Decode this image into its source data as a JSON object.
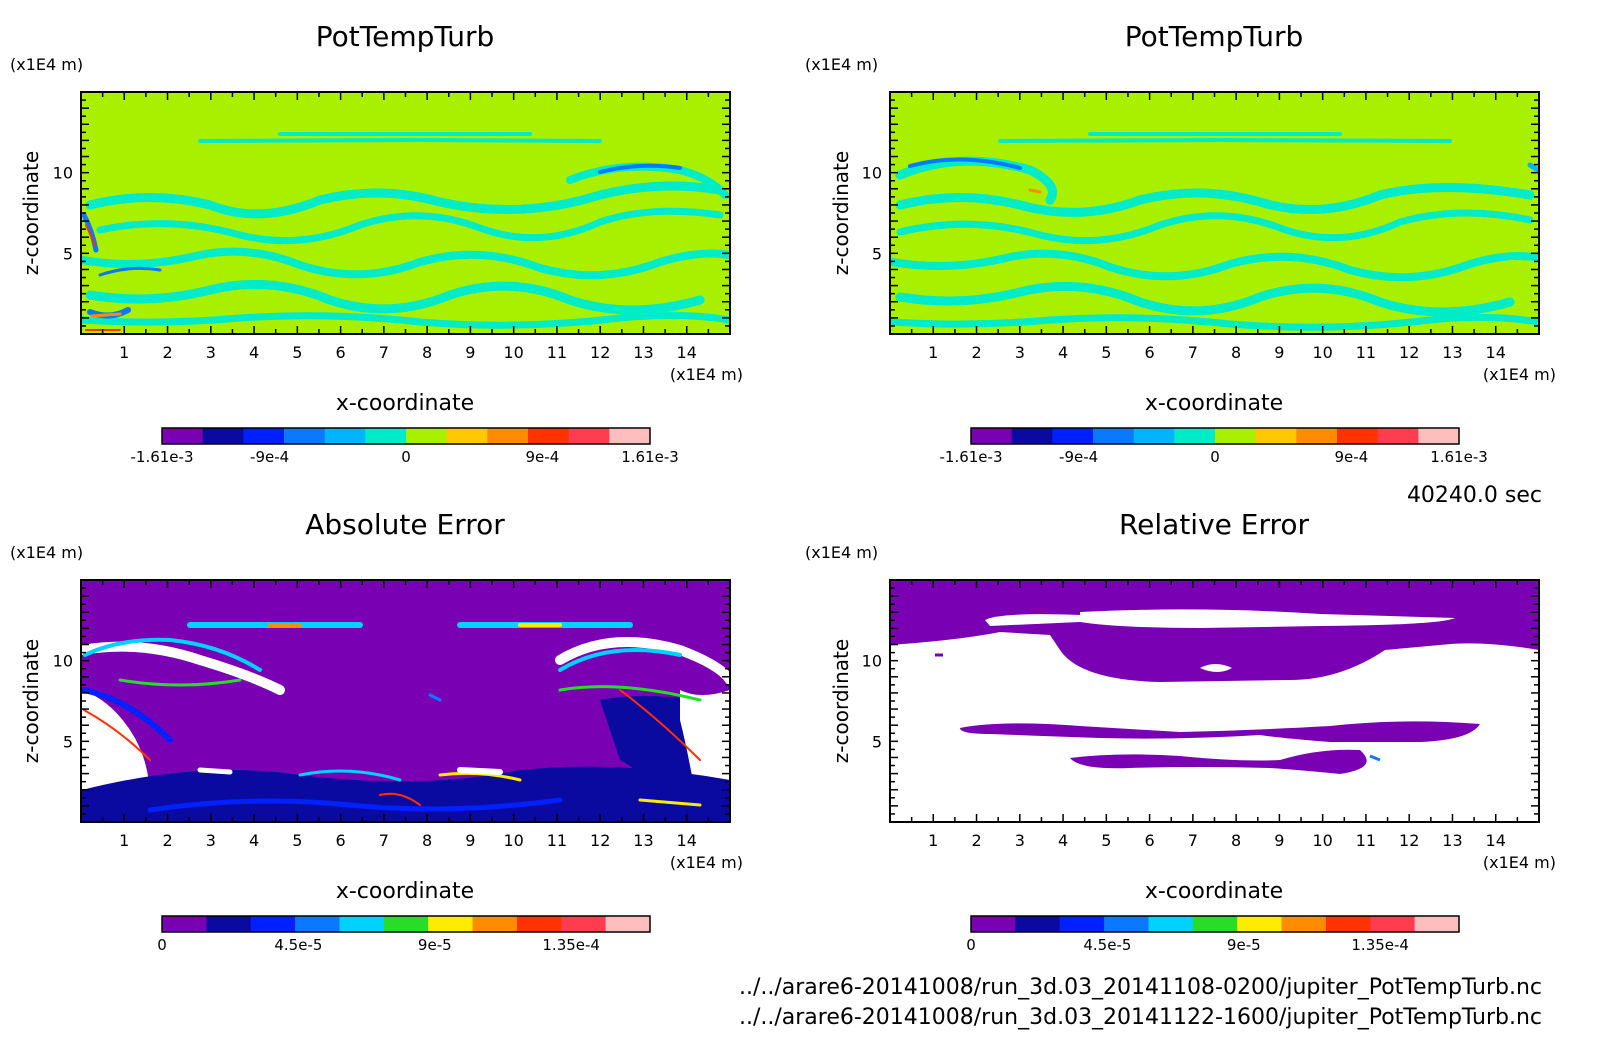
{
  "time_label": "40240.0 sec",
  "files": [
    "../../arare6-20141008/run_3d.03_20141108-0200/jupiter_PotTempTurb.nc",
    "../../arare6-20141008/run_3d.03_20141122-1600/jupiter_PotTempTurb.nc"
  ],
  "chart_data": [
    {
      "type": "heatmap",
      "title": "PotTempTurb",
      "xlabel": "x-coordinate",
      "ylabel": "z-coordinate",
      "x_unit": "(x1E4 m)",
      "y_unit": "(x1E4 m)",
      "xlim": [
        0,
        15
      ],
      "ylim": [
        0,
        15
      ],
      "xticks": [
        1,
        2,
        3,
        4,
        5,
        6,
        7,
        8,
        9,
        10,
        11,
        12,
        13,
        14
      ],
      "yticks": [
        5,
        10
      ],
      "background_color": "#a8ef00",
      "colorbar": {
        "colors": [
          "#7a00b4",
          "#0a0aa0",
          "#0020ff",
          "#0a78ff",
          "#00b4ff",
          "#00ebc8",
          "#a8ef00",
          "#ffc800",
          "#ff8c00",
          "#ff3200",
          "#ff3c50",
          "#ffbebe"
        ],
        "tick_labels": [
          "-1.61e-3",
          "-9e-4",
          "0",
          "9e-4",
          "1.61e-3"
        ],
        "tick_values": [
          -0.00161,
          -0.0009,
          0,
          0.0009,
          0.00161
        ],
        "range": [
          -0.00161,
          0.00161
        ]
      }
    },
    {
      "type": "heatmap",
      "title": "PotTempTurb",
      "xlabel": "x-coordinate",
      "ylabel": "z-coordinate",
      "x_unit": "(x1E4 m)",
      "y_unit": "(x1E4 m)",
      "xlim": [
        0,
        15
      ],
      "ylim": [
        0,
        15
      ],
      "xticks": [
        1,
        2,
        3,
        4,
        5,
        6,
        7,
        8,
        9,
        10,
        11,
        12,
        13,
        14
      ],
      "yticks": [
        5,
        10
      ],
      "background_color": "#a8ef00",
      "colorbar": {
        "colors": [
          "#7a00b4",
          "#0a0aa0",
          "#0020ff",
          "#0a78ff",
          "#00b4ff",
          "#00ebc8",
          "#a8ef00",
          "#ffc800",
          "#ff8c00",
          "#ff3200",
          "#ff3c50",
          "#ffbebe"
        ],
        "tick_labels": [
          "-1.61e-3",
          "-9e-4",
          "0",
          "9e-4",
          "1.61e-3"
        ],
        "tick_values": [
          -0.00161,
          -0.0009,
          0,
          0.0009,
          0.00161
        ],
        "range": [
          -0.00161,
          0.00161
        ]
      }
    },
    {
      "type": "heatmap",
      "title": "Absolute Error",
      "xlabel": "x-coordinate",
      "ylabel": "z-coordinate",
      "x_unit": "(x1E4 m)",
      "y_unit": "(x1E4 m)",
      "xlim": [
        0,
        15
      ],
      "ylim": [
        0,
        15
      ],
      "xticks": [
        1,
        2,
        3,
        4,
        5,
        6,
        7,
        8,
        9,
        10,
        11,
        12,
        13,
        14
      ],
      "yticks": [
        5,
        10
      ],
      "background_color": "#7a00b4",
      "colorbar": {
        "colors": [
          "#7a00b4",
          "#0a0aa0",
          "#0020ff",
          "#0a78ff",
          "#00d2ff",
          "#28dc28",
          "#ffeb00",
          "#ff8c00",
          "#ff3200",
          "#ff3c50",
          "#ffbebe"
        ],
        "tick_labels": [
          "0",
          "4.5e-5",
          "9e-5",
          "1.35e-4"
        ],
        "tick_values": [
          0,
          4.5e-05,
          9e-05,
          0.000135
        ],
        "range": [
          0,
          0.000161
        ]
      }
    },
    {
      "type": "heatmap",
      "title": "Relative Error",
      "xlabel": "x-coordinate",
      "ylabel": "z-coordinate",
      "x_unit": "(x1E4 m)",
      "y_unit": "(x1E4 m)",
      "xlim": [
        0,
        15
      ],
      "ylim": [
        0,
        15
      ],
      "xticks": [
        1,
        2,
        3,
        4,
        5,
        6,
        7,
        8,
        9,
        10,
        11,
        12,
        13,
        14
      ],
      "yticks": [
        5,
        10
      ],
      "background_color": "#ffffff",
      "colorbar": {
        "colors": [
          "#7a00b4",
          "#0a0aa0",
          "#0020ff",
          "#0a78ff",
          "#00d2ff",
          "#28dc28",
          "#ffeb00",
          "#ff8c00",
          "#ff3200",
          "#ff3c50",
          "#ffbebe"
        ],
        "tick_labels": [
          "0",
          "4.5e-5",
          "9e-5",
          "1.35e-4"
        ],
        "tick_values": [
          0,
          4.5e-05,
          9e-05,
          0.000135
        ],
        "range": [
          0,
          0.000161
        ]
      }
    }
  ]
}
